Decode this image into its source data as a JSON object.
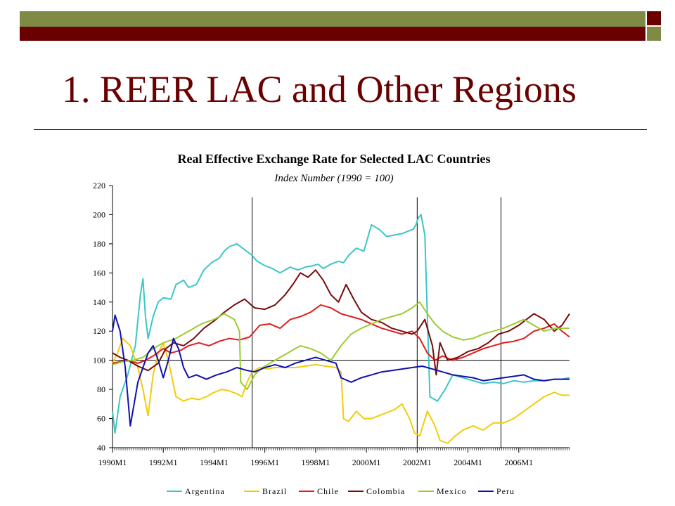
{
  "slide": {
    "title": "1. REER LAC and Other Regions",
    "colors": {
      "accent_red": "#6b0000",
      "accent_green": "#7f8a45"
    }
  },
  "chart_data": {
    "type": "line",
    "title": "Real Effective Exchange Rate for Selected LAC Countries",
    "subtitle": "Index Number (1990 = 100)",
    "xlabel": "",
    "ylabel": "",
    "ylim": [
      40,
      220
    ],
    "xlim": [
      1990.0,
      2008.0
    ],
    "yticks": [
      40,
      60,
      80,
      100,
      120,
      140,
      160,
      180,
      200,
      220
    ],
    "xtick_labels": [
      {
        "value": 1990.0,
        "label": "1990M1"
      },
      {
        "value": 1992.0,
        "label": "1992M1"
      },
      {
        "value": 1994.0,
        "label": "1994M1"
      },
      {
        "value": 1996.0,
        "label": "1996M1"
      },
      {
        "value": 1998.0,
        "label": "1998M1"
      },
      {
        "value": 2000.0,
        "label": "2000M1"
      },
      {
        "value": 2002.0,
        "label": "2002M1"
      },
      {
        "value": 2004.0,
        "label": "2004M1"
      },
      {
        "value": 2006.0,
        "label": "2006M1"
      }
    ],
    "reference_line": 100,
    "vertical_markers": [
      1995.5,
      2002.0,
      2005.3
    ],
    "grid": false,
    "legend_position": "bottom",
    "series": [
      {
        "name": "Argentina",
        "color": "#3cc6c6",
        "x": [
          1990.0,
          1990.1,
          1990.3,
          1990.6,
          1990.9,
          1991.1,
          1991.2,
          1991.3,
          1991.4,
          1991.6,
          1991.8,
          1992.0,
          1992.3,
          1992.5,
          1992.8,
          1993.0,
          1993.3,
          1993.6,
          1993.9,
          1994.2,
          1994.4,
          1994.6,
          1994.9,
          1995.2,
          1995.5,
          1995.7,
          1996.0,
          1996.3,
          1996.6,
          1997.0,
          1997.3,
          1997.6,
          1997.9,
          1998.1,
          1998.3,
          1998.6,
          1998.9,
          1999.1,
          1999.3,
          1999.6,
          1999.9,
          2000.2,
          2000.5,
          2000.8,
          2001.1,
          2001.4,
          2001.7,
          2001.85,
          2001.95,
          2002.05,
          2002.15,
          2002.3,
          2002.5,
          2002.8,
          2003.1,
          2003.4,
          2003.8,
          2004.2,
          2004.6,
          2005.0,
          2005.4,
          2005.8,
          2006.2,
          2006.6,
          2007.0,
          2007.4,
          2007.7,
          2008.0
        ],
        "y": [
          65,
          50,
          75,
          90,
          110,
          145,
          156,
          130,
          115,
          130,
          140,
          143,
          142,
          152,
          155,
          150,
          152,
          162,
          167,
          170,
          175,
          178,
          180,
          176,
          172,
          168,
          165,
          163,
          160,
          164,
          162,
          164,
          165,
          166,
          163,
          166,
          168,
          167,
          172,
          177,
          175,
          193,
          190,
          185,
          186,
          187,
          189,
          190,
          193,
          198,
          200,
          186,
          75,
          72,
          80,
          90,
          88,
          86,
          84,
          85,
          84,
          86,
          85,
          86,
          86,
          87,
          87,
          88
        ]
      },
      {
        "name": "Brazil",
        "color": "#f2cc0c",
        "x": [
          1990.0,
          1990.2,
          1990.4,
          1990.7,
          1991.0,
          1991.2,
          1991.4,
          1991.6,
          1991.8,
          1992.0,
          1992.2,
          1992.5,
          1992.8,
          1993.1,
          1993.4,
          1993.7,
          1994.0,
          1994.3,
          1994.6,
          1994.9,
          1995.1,
          1995.3,
          1995.5,
          1995.8,
          1996.1,
          1996.4,
          1996.8,
          1997.2,
          1997.6,
          1998.0,
          1998.4,
          1998.8,
          1999.0,
          1999.1,
          1999.3,
          1999.6,
          1999.9,
          2000.2,
          2000.5,
          2000.8,
          2001.1,
          2001.4,
          2001.7,
          2001.9,
          2002.1,
          2002.4,
          2002.7,
          2002.9,
          2003.2,
          2003.5,
          2003.8,
          2004.2,
          2004.6,
          2005.0,
          2005.4,
          2005.8,
          2006.2,
          2006.6,
          2007.0,
          2007.4,
          2007.7,
          2008.0
        ],
        "y": [
          98,
          105,
          115,
          110,
          95,
          80,
          62,
          90,
          105,
          112,
          100,
          75,
          72,
          74,
          73,
          75,
          78,
          80,
          79,
          77,
          75,
          85,
          92,
          95,
          94,
          95,
          95,
          95,
          96,
          97,
          96,
          95,
          92,
          60,
          58,
          65,
          60,
          60,
          62,
          64,
          66,
          70,
          60,
          50,
          48,
          65,
          55,
          45,
          43,
          48,
          52,
          55,
          52,
          57,
          57,
          60,
          65,
          70,
          75,
          78,
          76,
          76
        ]
      },
      {
        "name": "Chile",
        "color": "#e01c1c",
        "x": [
          1990.0,
          1990.3,
          1990.6,
          1991.0,
          1991.3,
          1991.6,
          1992.0,
          1992.3,
          1992.7,
          1993.0,
          1993.4,
          1993.8,
          1994.2,
          1994.6,
          1995.0,
          1995.4,
          1995.8,
          1996.2,
          1996.6,
          1997.0,
          1997.4,
          1997.8,
          1998.2,
          1998.6,
          1999.0,
          1999.4,
          1999.8,
          2000.2,
          2000.6,
          2001.0,
          2001.4,
          2001.8,
          2002.1,
          2002.4,
          2002.7,
          2003.0,
          2003.4,
          2003.8,
          2004.2,
          2004.6,
          2005.0,
          2005.4,
          2005.8,
          2006.2,
          2006.6,
          2007.0,
          2007.4,
          2007.7,
          2008.0
        ],
        "y": [
          98,
          99,
          100,
          98,
          100,
          103,
          108,
          105,
          107,
          110,
          112,
          110,
          113,
          115,
          114,
          116,
          124,
          125,
          122,
          128,
          130,
          133,
          138,
          136,
          132,
          130,
          128,
          125,
          122,
          120,
          118,
          120,
          115,
          105,
          100,
          103,
          100,
          102,
          105,
          108,
          110,
          112,
          113,
          115,
          120,
          122,
          125,
          120,
          116
        ]
      },
      {
        "name": "Colombia",
        "color": "#7a0a0a",
        "x": [
          1990.0,
          1990.3,
          1990.6,
          1991.0,
          1991.4,
          1991.8,
          1992.1,
          1992.4,
          1992.8,
          1993.2,
          1993.6,
          1994.0,
          1994.4,
          1994.8,
          1995.2,
          1995.6,
          1996.0,
          1996.4,
          1996.8,
          1997.1,
          1997.4,
          1997.7,
          1998.0,
          1998.3,
          1998.6,
          1998.9,
          1999.2,
          1999.5,
          1999.8,
          2000.2,
          2000.6,
          2001.0,
          2001.4,
          2001.8,
          2002.0,
          2002.3,
          2002.6,
          2002.75,
          2002.9,
          2003.2,
          2003.6,
          2004.0,
          2004.4,
          2004.8,
          2005.2,
          2005.6,
          2006.0,
          2006.3,
          2006.6,
          2007.0,
          2007.4,
          2007.7,
          2008.0
        ],
        "y": [
          105,
          102,
          100,
          96,
          93,
          98,
          108,
          112,
          110,
          115,
          122,
          127,
          133,
          138,
          142,
          136,
          135,
          138,
          145,
          152,
          160,
          157,
          162,
          155,
          145,
          140,
          152,
          142,
          133,
          128,
          126,
          122,
          120,
          118,
          120,
          128,
          110,
          90,
          112,
          100,
          102,
          106,
          108,
          112,
          118,
          120,
          124,
          128,
          132,
          128,
          120,
          124,
          132
        ]
      },
      {
        "name": "Mexico",
        "color": "#9acd32",
        "x": [
          1990.0,
          1990.4,
          1990.8,
          1991.2,
          1991.6,
          1992.0,
          1992.5,
          1993.0,
          1993.5,
          1994.0,
          1994.4,
          1994.8,
          1995.0,
          1995.05,
          1995.3,
          1995.6,
          1995.9,
          1996.2,
          1996.6,
          1997.0,
          1997.4,
          1997.8,
          1998.2,
          1998.6,
          1999.0,
          1999.4,
          1999.8,
          2000.2,
          2000.6,
          2001.0,
          2001.4,
          2001.8,
          2002.1,
          2002.4,
          2002.7,
          2003.0,
          2003.4,
          2003.8,
          2004.2,
          2004.6,
          2005.0,
          2005.4,
          2005.8,
          2006.2,
          2006.6,
          2007.0,
          2007.4,
          2007.7,
          2008.0
        ],
        "y": [
          97,
          99,
          100,
          102,
          108,
          112,
          115,
          120,
          125,
          128,
          132,
          128,
          120,
          85,
          80,
          90,
          95,
          98,
          102,
          106,
          110,
          108,
          105,
          100,
          110,
          118,
          122,
          125,
          128,
          130,
          132,
          136,
          140,
          132,
          125,
          120,
          116,
          114,
          115,
          118,
          120,
          122,
          125,
          128,
          124,
          120,
          122,
          122,
          122
        ]
      },
      {
        "name": "Peru",
        "color": "#1010b0",
        "x": [
          1990.0,
          1990.1,
          1990.3,
          1990.5,
          1990.7,
          1990.9,
          1991.0,
          1991.2,
          1991.4,
          1991.6,
          1991.8,
          1992.0,
          1992.2,
          1992.4,
          1992.6,
          1992.8,
          1993.0,
          1993.3,
          1993.7,
          1994.1,
          1994.5,
          1994.9,
          1995.3,
          1995.6,
          1996.0,
          1996.4,
          1996.8,
          1997.2,
          1997.6,
          1998.0,
          1998.4,
          1998.8,
          1999.0,
          1999.4,
          1999.8,
          2000.2,
          2000.6,
          2001.0,
          2001.4,
          2001.8,
          2002.2,
          2002.6,
          2003.0,
          2003.4,
          2003.8,
          2004.2,
          2004.6,
          2005.0,
          2005.4,
          2005.8,
          2006.2,
          2006.6,
          2007.0,
          2007.4,
          2007.7,
          2008.0
        ],
        "y": [
          120,
          131,
          120,
          95,
          55,
          75,
          85,
          95,
          105,
          110,
          100,
          88,
          100,
          115,
          108,
          95,
          88,
          90,
          87,
          90,
          92,
          95,
          93,
          92,
          95,
          97,
          95,
          98,
          100,
          102,
          100,
          98,
          88,
          85,
          88,
          90,
          92,
          93,
          94,
          95,
          96,
          94,
          92,
          90,
          89,
          88,
          86,
          87,
          88,
          89,
          90,
          87,
          86,
          87,
          87,
          87
        ]
      }
    ]
  }
}
